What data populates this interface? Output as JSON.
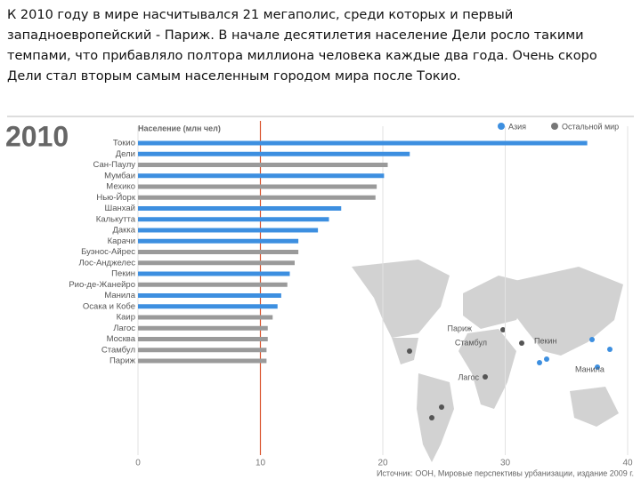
{
  "intro": "К 2010 году в мире насчитывался 21 мегаполис, среди которых и первый западноевропейский - Париж. В начале десятилетия население Дели росло такими темпами, что прибавляло полтора миллиона человека каждые два года. Очень скоро Дели стал вторым самым населенным городом мира после Токио.",
  "chart_data": {
    "type": "bar",
    "orientation": "horizontal",
    "year_label": "2010",
    "axis_label": "Население (млн чел)",
    "categories": [
      "Токио",
      "Дели",
      "Сан-Паулу",
      "Мумбаи",
      "Мехико",
      "Нью-Йорк",
      "Шанхай",
      "Калькутта",
      "Дакка",
      "Карачи",
      "Буэнос-Айрес",
      "Лос-Анджелес",
      "Пекин",
      "Рио-де-Жанейро",
      "Манила",
      "Осака и Кобе",
      "Каир",
      "Лагос",
      "Москва",
      "Стамбул",
      "Париж"
    ],
    "values": [
      36.7,
      22.2,
      20.4,
      20.1,
      19.5,
      19.4,
      16.6,
      15.6,
      14.7,
      13.1,
      13.1,
      12.8,
      12.4,
      12.2,
      11.7,
      11.4,
      11.0,
      10.6,
      10.6,
      10.5,
      10.5
    ],
    "colors": [
      "#3d8fe0",
      "#3d8fe0",
      "#9a9a9a",
      "#3d8fe0",
      "#9a9a9a",
      "#9a9a9a",
      "#3d8fe0",
      "#3d8fe0",
      "#3d8fe0",
      "#3d8fe0",
      "#9a9a9a",
      "#9a9a9a",
      "#3d8fe0",
      "#9a9a9a",
      "#3d8fe0",
      "#3d8fe0",
      "#9a9a9a",
      "#9a9a9a",
      "#9a9a9a",
      "#9a9a9a",
      "#9a9a9a"
    ],
    "legend": [
      {
        "name": "Азия",
        "color": "#3d8fe0"
      },
      {
        "name": "Остальной мир",
        "color": "#777777"
      }
    ],
    "xlim": [
      0,
      40
    ],
    "xticks": [
      0,
      10,
      20,
      30,
      40
    ],
    "grid": true,
    "ref_line": {
      "value": 10,
      "color": "#d9532c"
    },
    "map_labels": [
      "Париж",
      "Стамбул",
      "Пекин",
      "Лагос",
      "Манила"
    ],
    "source": "Источник: ООН, Мировые перспективы урбанизации, издание 2009 г."
  }
}
